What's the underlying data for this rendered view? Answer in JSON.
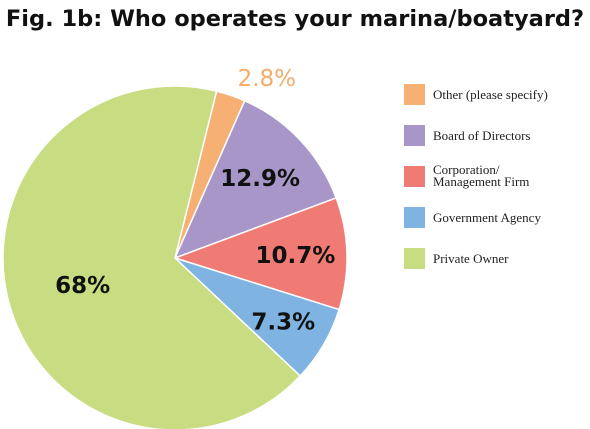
{
  "chart_data": {
    "type": "pie",
    "title": "Fig. 1b: Who operates your marina/boatyard?",
    "slices": [
      {
        "label": "Other (please specify)",
        "value": 2.8,
        "display": "2.8%",
        "color": "#f7b073"
      },
      {
        "label": "Board of Directors",
        "value": 12.9,
        "display": "12.9%",
        "color": "#a996c9"
      },
      {
        "label": "Corporation/ Management Firm",
        "label_lines": [
          "Corporation/",
          "Management Firm"
        ],
        "value": 10.7,
        "display": "10.7%",
        "color": "#f07b75"
      },
      {
        "label": "Government Agency",
        "value": 7.3,
        "display": "7.3%",
        "color": "#7fb3e2"
      },
      {
        "label": "Private Owner",
        "value": 68,
        "display": "68%",
        "color": "#c8dc82"
      }
    ],
    "legend_position": "right",
    "label_colors": {
      "outside": "#f5ab6a",
      "inside": "#111111"
    }
  }
}
